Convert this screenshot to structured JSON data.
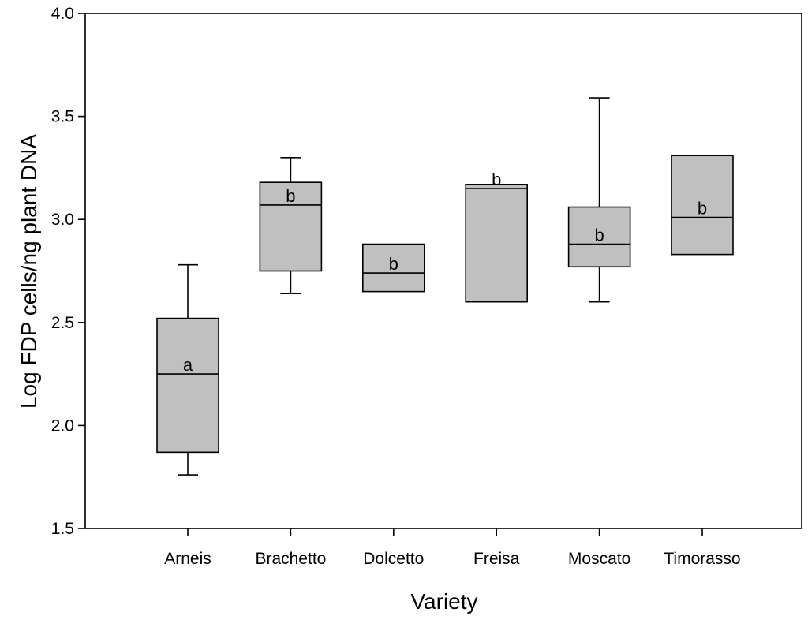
{
  "chart_data": {
    "type": "box",
    "title": "",
    "xlabel": "Variety",
    "ylabel": "Log FDP cells/ng plant DNA",
    "ylim": [
      1.5,
      4.0
    ],
    "yticks": [
      1.5,
      2.0,
      2.5,
      3.0,
      3.5,
      4.0
    ],
    "ytick_labels": [
      "1.5",
      "2.0",
      "2.5",
      "3.0",
      "3.5",
      "4.0"
    ],
    "grid": false,
    "box_fill": "#c0c0c0",
    "categories": [
      "Arneis",
      "Brachetto",
      "Dolcetto",
      "Freisa",
      "Moscato",
      "Timorasso"
    ],
    "boxes": [
      {
        "category": "Arneis",
        "whisker_low": 1.76,
        "q1": 1.87,
        "median": 2.25,
        "q3": 2.52,
        "whisker_high": 2.78,
        "letter": "a"
      },
      {
        "category": "Brachetto",
        "whisker_low": 2.64,
        "q1": 2.75,
        "median": 3.07,
        "q3": 3.18,
        "whisker_high": 3.3,
        "letter": "b"
      },
      {
        "category": "Dolcetto",
        "whisker_low": null,
        "q1": 2.65,
        "median": 2.74,
        "q3": 2.88,
        "whisker_high": null,
        "letter": "b"
      },
      {
        "category": "Freisa",
        "whisker_low": null,
        "q1": 2.6,
        "median": 3.15,
        "q3": 3.17,
        "whisker_high": null,
        "letter": "b"
      },
      {
        "category": "Moscato",
        "whisker_low": 2.6,
        "q1": 2.77,
        "median": 2.88,
        "q3": 3.06,
        "whisker_high": 3.59,
        "letter": "b"
      },
      {
        "category": "Timorasso",
        "whisker_low": null,
        "q1": 2.83,
        "median": 3.01,
        "q3": 3.31,
        "whisker_high": null,
        "letter": "b"
      }
    ]
  }
}
